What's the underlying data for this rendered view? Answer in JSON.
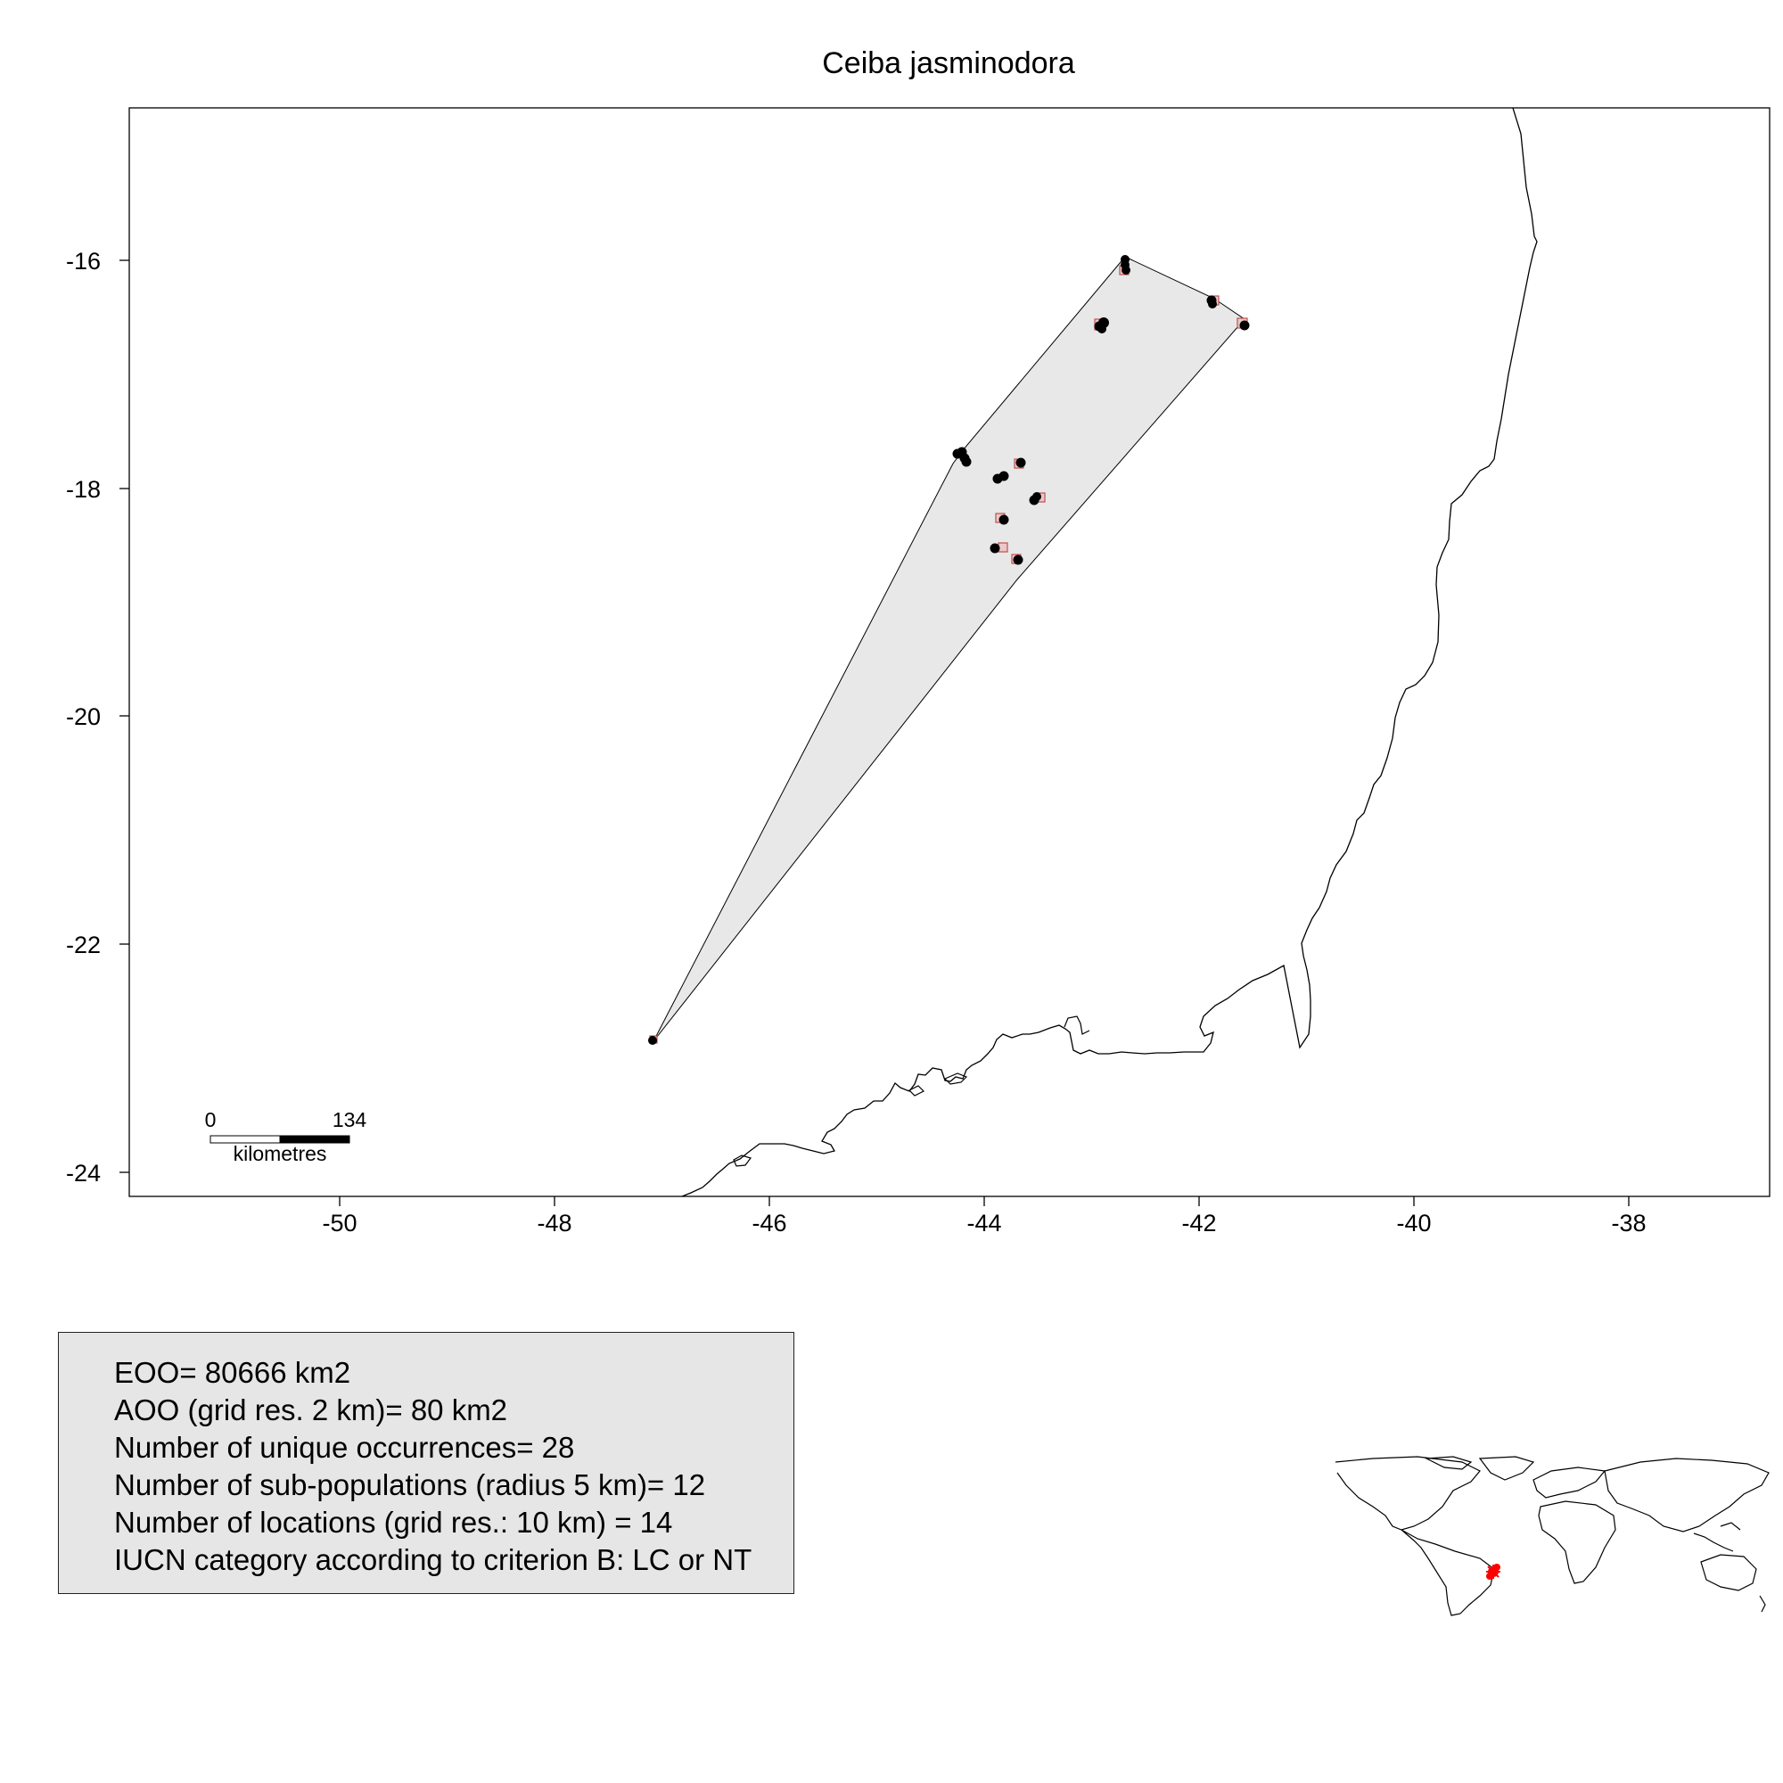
{
  "map": {
    "title": "Ceiba jasminodora",
    "x_ticks": [
      "-50",
      "-48",
      "-46",
      "-44",
      "-42",
      "-40",
      "-38"
    ],
    "y_ticks": [
      "-16",
      "-18",
      "-20",
      "-22",
      "-24"
    ],
    "scale_bar": {
      "start_label": "0",
      "end_label": "134",
      "unit_label": "kilometres"
    },
    "colors": {
      "eoo_polygon_fill": "#e8e8e8",
      "occurrence_marker": "#000000",
      "aoo_cell_fill": "#e9c9c9",
      "aoo_cell_stroke": "#c0504d",
      "inset_marker": "#ff0000"
    }
  },
  "stats": {
    "lines": [
      "EOO= 80666 km2",
      "AOO (grid res. 2 km)= 80 km2",
      "Number of unique occurrences= 28",
      "Number of sub-populations (radius 5 km)= 12",
      "Number of locations (grid res.: 10  km) = 14",
      "IUCN category according to criterion B: LC or NT"
    ]
  }
}
